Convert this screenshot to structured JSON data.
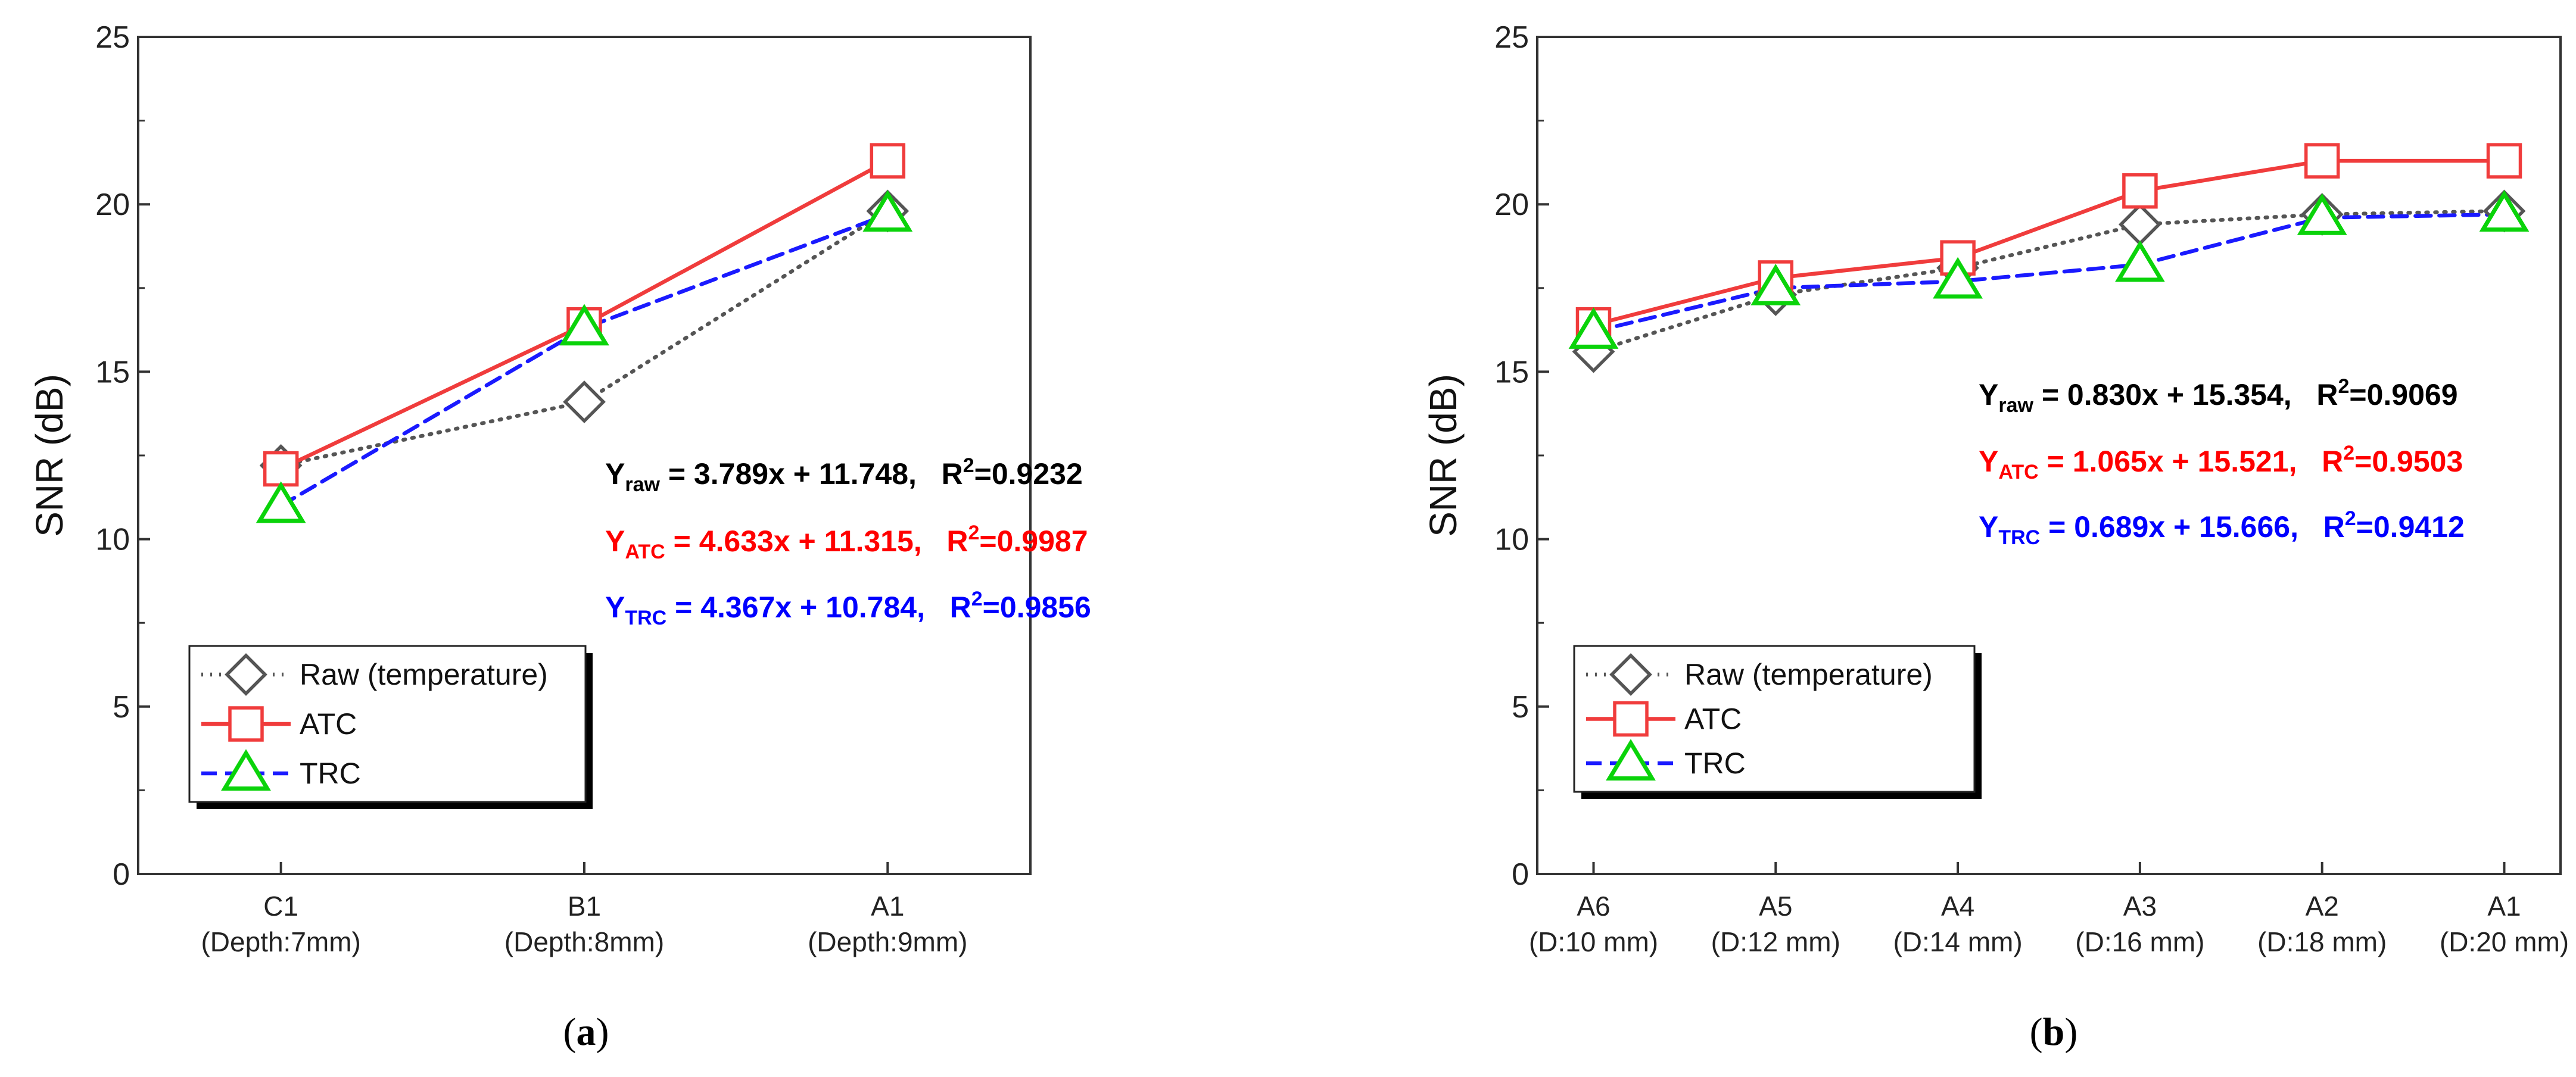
{
  "chart_data": [
    {
      "type": "line",
      "panel_label": "a",
      "ylabel": "SNR (dB)",
      "ylim": [
        0,
        25
      ],
      "yticks": [
        0,
        5,
        10,
        15,
        20,
        25
      ],
      "categories": [
        {
          "name": "C1",
          "sub": "(Depth:7mm)"
        },
        {
          "name": "B1",
          "sub": "(Depth:8mm)"
        },
        {
          "name": "A1",
          "sub": "(Depth:9mm)"
        }
      ],
      "series": [
        {
          "name": "Raw (temperature)",
          "values": [
            12.2,
            14.1,
            19.8
          ],
          "color": "#555555",
          "marker": "diamond",
          "dash": "dot"
        },
        {
          "name": "ATC",
          "values": [
            12.1,
            16.4,
            21.3
          ],
          "color": "#f03c3c",
          "marker": "square",
          "dash": "solid"
        },
        {
          "name": "TRC",
          "values": [
            11.0,
            16.3,
            19.7
          ],
          "color": "#1a1aff",
          "marker": "triangle",
          "dash": "dash"
        }
      ],
      "equations": [
        {
          "label": "Y",
          "sub": "raw",
          "rhs": " = 3.789x + 11.748,",
          "r2": "=0.9232",
          "color": "#000000"
        },
        {
          "label": "Y",
          "sub": "ATC",
          "rhs": " = 4.633x + 11.315,",
          "r2": "=0.9987",
          "color": "#ff0000"
        },
        {
          "label": "Y",
          "sub": "TRC",
          "rhs": " = 4.367x + 10.784,",
          "r2": "=0.9856",
          "color": "#0000ff"
        }
      ],
      "legend_position": "bottom-left"
    },
    {
      "type": "line",
      "panel_label": "b",
      "ylabel": "SNR (dB)",
      "ylim": [
        0,
        25
      ],
      "yticks": [
        0,
        5,
        10,
        15,
        20,
        25
      ],
      "categories": [
        {
          "name": "A6",
          "sub": "(D:10 mm)"
        },
        {
          "name": "A5",
          "sub": "(D:12 mm)"
        },
        {
          "name": "A4",
          "sub": "(D:14 mm)"
        },
        {
          "name": "A3",
          "sub": "(D:16 mm)"
        },
        {
          "name": "A2",
          "sub": "(D:18 mm)"
        },
        {
          "name": "A1",
          "sub": "(D:20 mm)"
        }
      ],
      "series": [
        {
          "name": "Raw (temperature)",
          "values": [
            15.6,
            17.3,
            18.1,
            19.4,
            19.7,
            19.8
          ],
          "color": "#555555",
          "marker": "diamond",
          "dash": "dot"
        },
        {
          "name": "ATC",
          "values": [
            16.4,
            17.8,
            18.4,
            20.4,
            21.3,
            21.3
          ],
          "color": "#f03c3c",
          "marker": "square",
          "dash": "solid"
        },
        {
          "name": "TRC",
          "values": [
            16.2,
            17.5,
            17.7,
            18.2,
            19.6,
            19.7
          ],
          "color": "#1a1aff",
          "marker": "triangle",
          "dash": "dash"
        }
      ],
      "equations": [
        {
          "label": "Y",
          "sub": "raw",
          "rhs": " = 0.830x + 15.354,",
          "r2": "=0.9069",
          "color": "#000000"
        },
        {
          "label": "Y",
          "sub": "ATC",
          "rhs": " = 1.065x + 15.521,",
          "r2": "=0.9503",
          "color": "#ff0000"
        },
        {
          "label": "Y",
          "sub": "TRC",
          "rhs": " = 0.689x + 15.666,",
          "r2": "=0.9412",
          "color": "#0000ff"
        }
      ],
      "legend_position": "bottom-left"
    }
  ]
}
